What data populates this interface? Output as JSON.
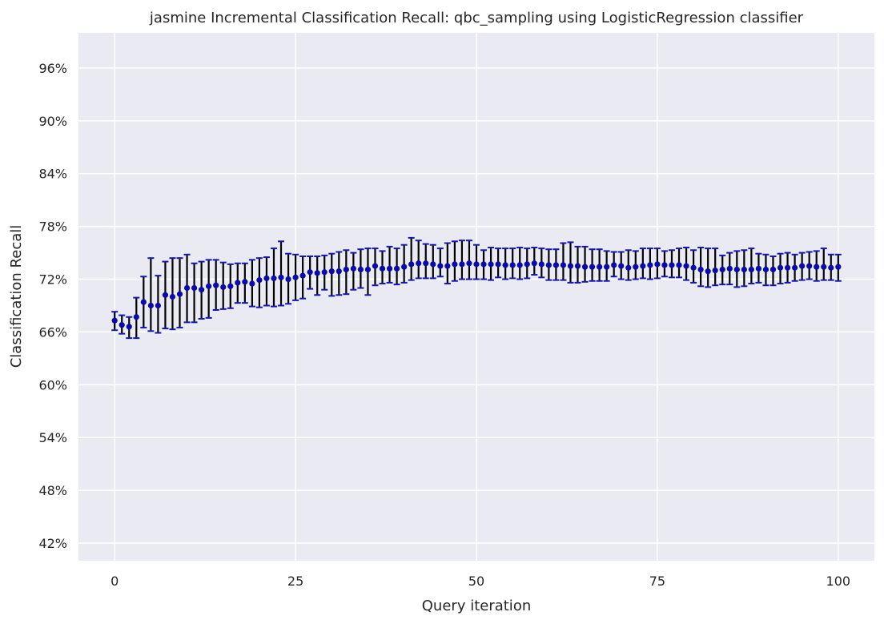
{
  "chart_data": {
    "type": "scatter",
    "title": "jasmine Incremental Classification Recall: qbc_sampling using LogisticRegression classifier",
    "xlabel": "Query iteration",
    "ylabel": "Classification Recall",
    "xlim": [
      -5,
      105
    ],
    "ylim": [
      0.4,
      1.0
    ],
    "x_ticks": [
      0,
      25,
      50,
      75,
      100
    ],
    "x_tick_labels": [
      "0",
      "25",
      "50",
      "75",
      "100"
    ],
    "y_ticks": [
      0.42,
      0.48,
      0.54,
      0.6,
      0.66,
      0.72,
      0.78,
      0.84,
      0.9,
      0.96
    ],
    "y_tick_labels": [
      "42%",
      "48%",
      "54%",
      "60%",
      "66%",
      "72%",
      "78%",
      "84%",
      "90%",
      "96%"
    ],
    "grid": true,
    "colors": {
      "background": "#EAEAF2",
      "grid": "#FFFFFF",
      "marker": "#0A0AA8",
      "errorbar": "#000000",
      "cap": "#1515B0"
    },
    "x": [
      0,
      1,
      2,
      3,
      4,
      5,
      6,
      7,
      8,
      9,
      10,
      11,
      12,
      13,
      14,
      15,
      16,
      17,
      18,
      19,
      20,
      21,
      22,
      23,
      24,
      25,
      26,
      27,
      28,
      29,
      30,
      31,
      32,
      33,
      34,
      35,
      36,
      37,
      38,
      39,
      40,
      41,
      42,
      43,
      44,
      45,
      46,
      47,
      48,
      49,
      50,
      51,
      52,
      53,
      54,
      55,
      56,
      57,
      58,
      59,
      60,
      61,
      62,
      63,
      64,
      65,
      66,
      67,
      68,
      69,
      70,
      71,
      72,
      73,
      74,
      75,
      76,
      77,
      78,
      79,
      80,
      81,
      82,
      83,
      84,
      85,
      86,
      87,
      88,
      89,
      90,
      91,
      92,
      93,
      94,
      95,
      96,
      97,
      98,
      99,
      100
    ],
    "y": [
      0.673,
      0.668,
      0.666,
      0.677,
      0.694,
      0.69,
      0.69,
      0.702,
      0.7,
      0.703,
      0.71,
      0.71,
      0.708,
      0.712,
      0.713,
      0.711,
      0.712,
      0.716,
      0.717,
      0.715,
      0.719,
      0.721,
      0.721,
      0.722,
      0.72,
      0.722,
      0.724,
      0.728,
      0.727,
      0.728,
      0.729,
      0.729,
      0.731,
      0.732,
      0.731,
      0.731,
      0.735,
      0.732,
      0.732,
      0.732,
      0.734,
      0.737,
      0.738,
      0.738,
      0.737,
      0.735,
      0.735,
      0.737,
      0.737,
      0.738,
      0.737,
      0.737,
      0.737,
      0.737,
      0.736,
      0.736,
      0.736,
      0.737,
      0.738,
      0.737,
      0.736,
      0.736,
      0.736,
      0.735,
      0.735,
      0.734,
      0.734,
      0.734,
      0.734,
      0.736,
      0.735,
      0.733,
      0.734,
      0.735,
      0.736,
      0.737,
      0.736,
      0.736,
      0.736,
      0.735,
      0.733,
      0.731,
      0.729,
      0.73,
      0.731,
      0.732,
      0.731,
      0.731,
      0.731,
      0.732,
      0.731,
      0.731,
      0.733,
      0.733,
      0.733,
      0.735,
      0.735,
      0.734,
      0.734,
      0.733,
      0.734
    ],
    "err_upper": [
      0.683,
      0.679,
      0.677,
      0.699,
      0.723,
      0.744,
      0.724,
      0.74,
      0.744,
      0.744,
      0.748,
      0.738,
      0.74,
      0.742,
      0.742,
      0.739,
      0.737,
      0.738,
      0.738,
      0.742,
      0.744,
      0.745,
      0.755,
      0.763,
      0.749,
      0.748,
      0.746,
      0.746,
      0.746,
      0.747,
      0.749,
      0.751,
      0.753,
      0.75,
      0.754,
      0.755,
      0.755,
      0.752,
      0.757,
      0.755,
      0.759,
      0.767,
      0.764,
      0.76,
      0.759,
      0.755,
      0.761,
      0.763,
      0.764,
      0.764,
      0.759,
      0.753,
      0.756,
      0.755,
      0.755,
      0.755,
      0.756,
      0.755,
      0.756,
      0.755,
      0.754,
      0.754,
      0.761,
      0.762,
      0.757,
      0.757,
      0.754,
      0.754,
      0.752,
      0.751,
      0.751,
      0.753,
      0.752,
      0.755,
      0.755,
      0.755,
      0.752,
      0.753,
      0.755,
      0.756,
      0.753,
      0.756,
      0.755,
      0.755,
      0.747,
      0.75,
      0.752,
      0.753,
      0.755,
      0.749,
      0.748,
      0.746,
      0.749,
      0.75,
      0.748,
      0.75,
      0.751,
      0.752,
      0.755,
      0.748,
      0.748
    ],
    "err_lower": [
      0.662,
      0.658,
      0.653,
      0.653,
      0.665,
      0.661,
      0.659,
      0.664,
      0.663,
      0.665,
      0.671,
      0.671,
      0.675,
      0.676,
      0.685,
      0.686,
      0.687,
      0.693,
      0.693,
      0.689,
      0.688,
      0.69,
      0.689,
      0.69,
      0.692,
      0.696,
      0.698,
      0.709,
      0.702,
      0.708,
      0.701,
      0.702,
      0.703,
      0.708,
      0.71,
      0.702,
      0.713,
      0.715,
      0.716,
      0.714,
      0.716,
      0.719,
      0.721,
      0.721,
      0.721,
      0.723,
      0.715,
      0.718,
      0.72,
      0.72,
      0.72,
      0.72,
      0.719,
      0.722,
      0.72,
      0.721,
      0.72,
      0.721,
      0.725,
      0.722,
      0.719,
      0.719,
      0.719,
      0.716,
      0.716,
      0.717,
      0.718,
      0.718,
      0.718,
      0.723,
      0.72,
      0.719,
      0.72,
      0.721,
      0.72,
      0.721,
      0.723,
      0.722,
      0.722,
      0.719,
      0.716,
      0.712,
      0.711,
      0.713,
      0.714,
      0.714,
      0.711,
      0.712,
      0.715,
      0.716,
      0.713,
      0.713,
      0.715,
      0.716,
      0.718,
      0.719,
      0.72,
      0.718,
      0.719,
      0.719,
      0.718
    ]
  }
}
